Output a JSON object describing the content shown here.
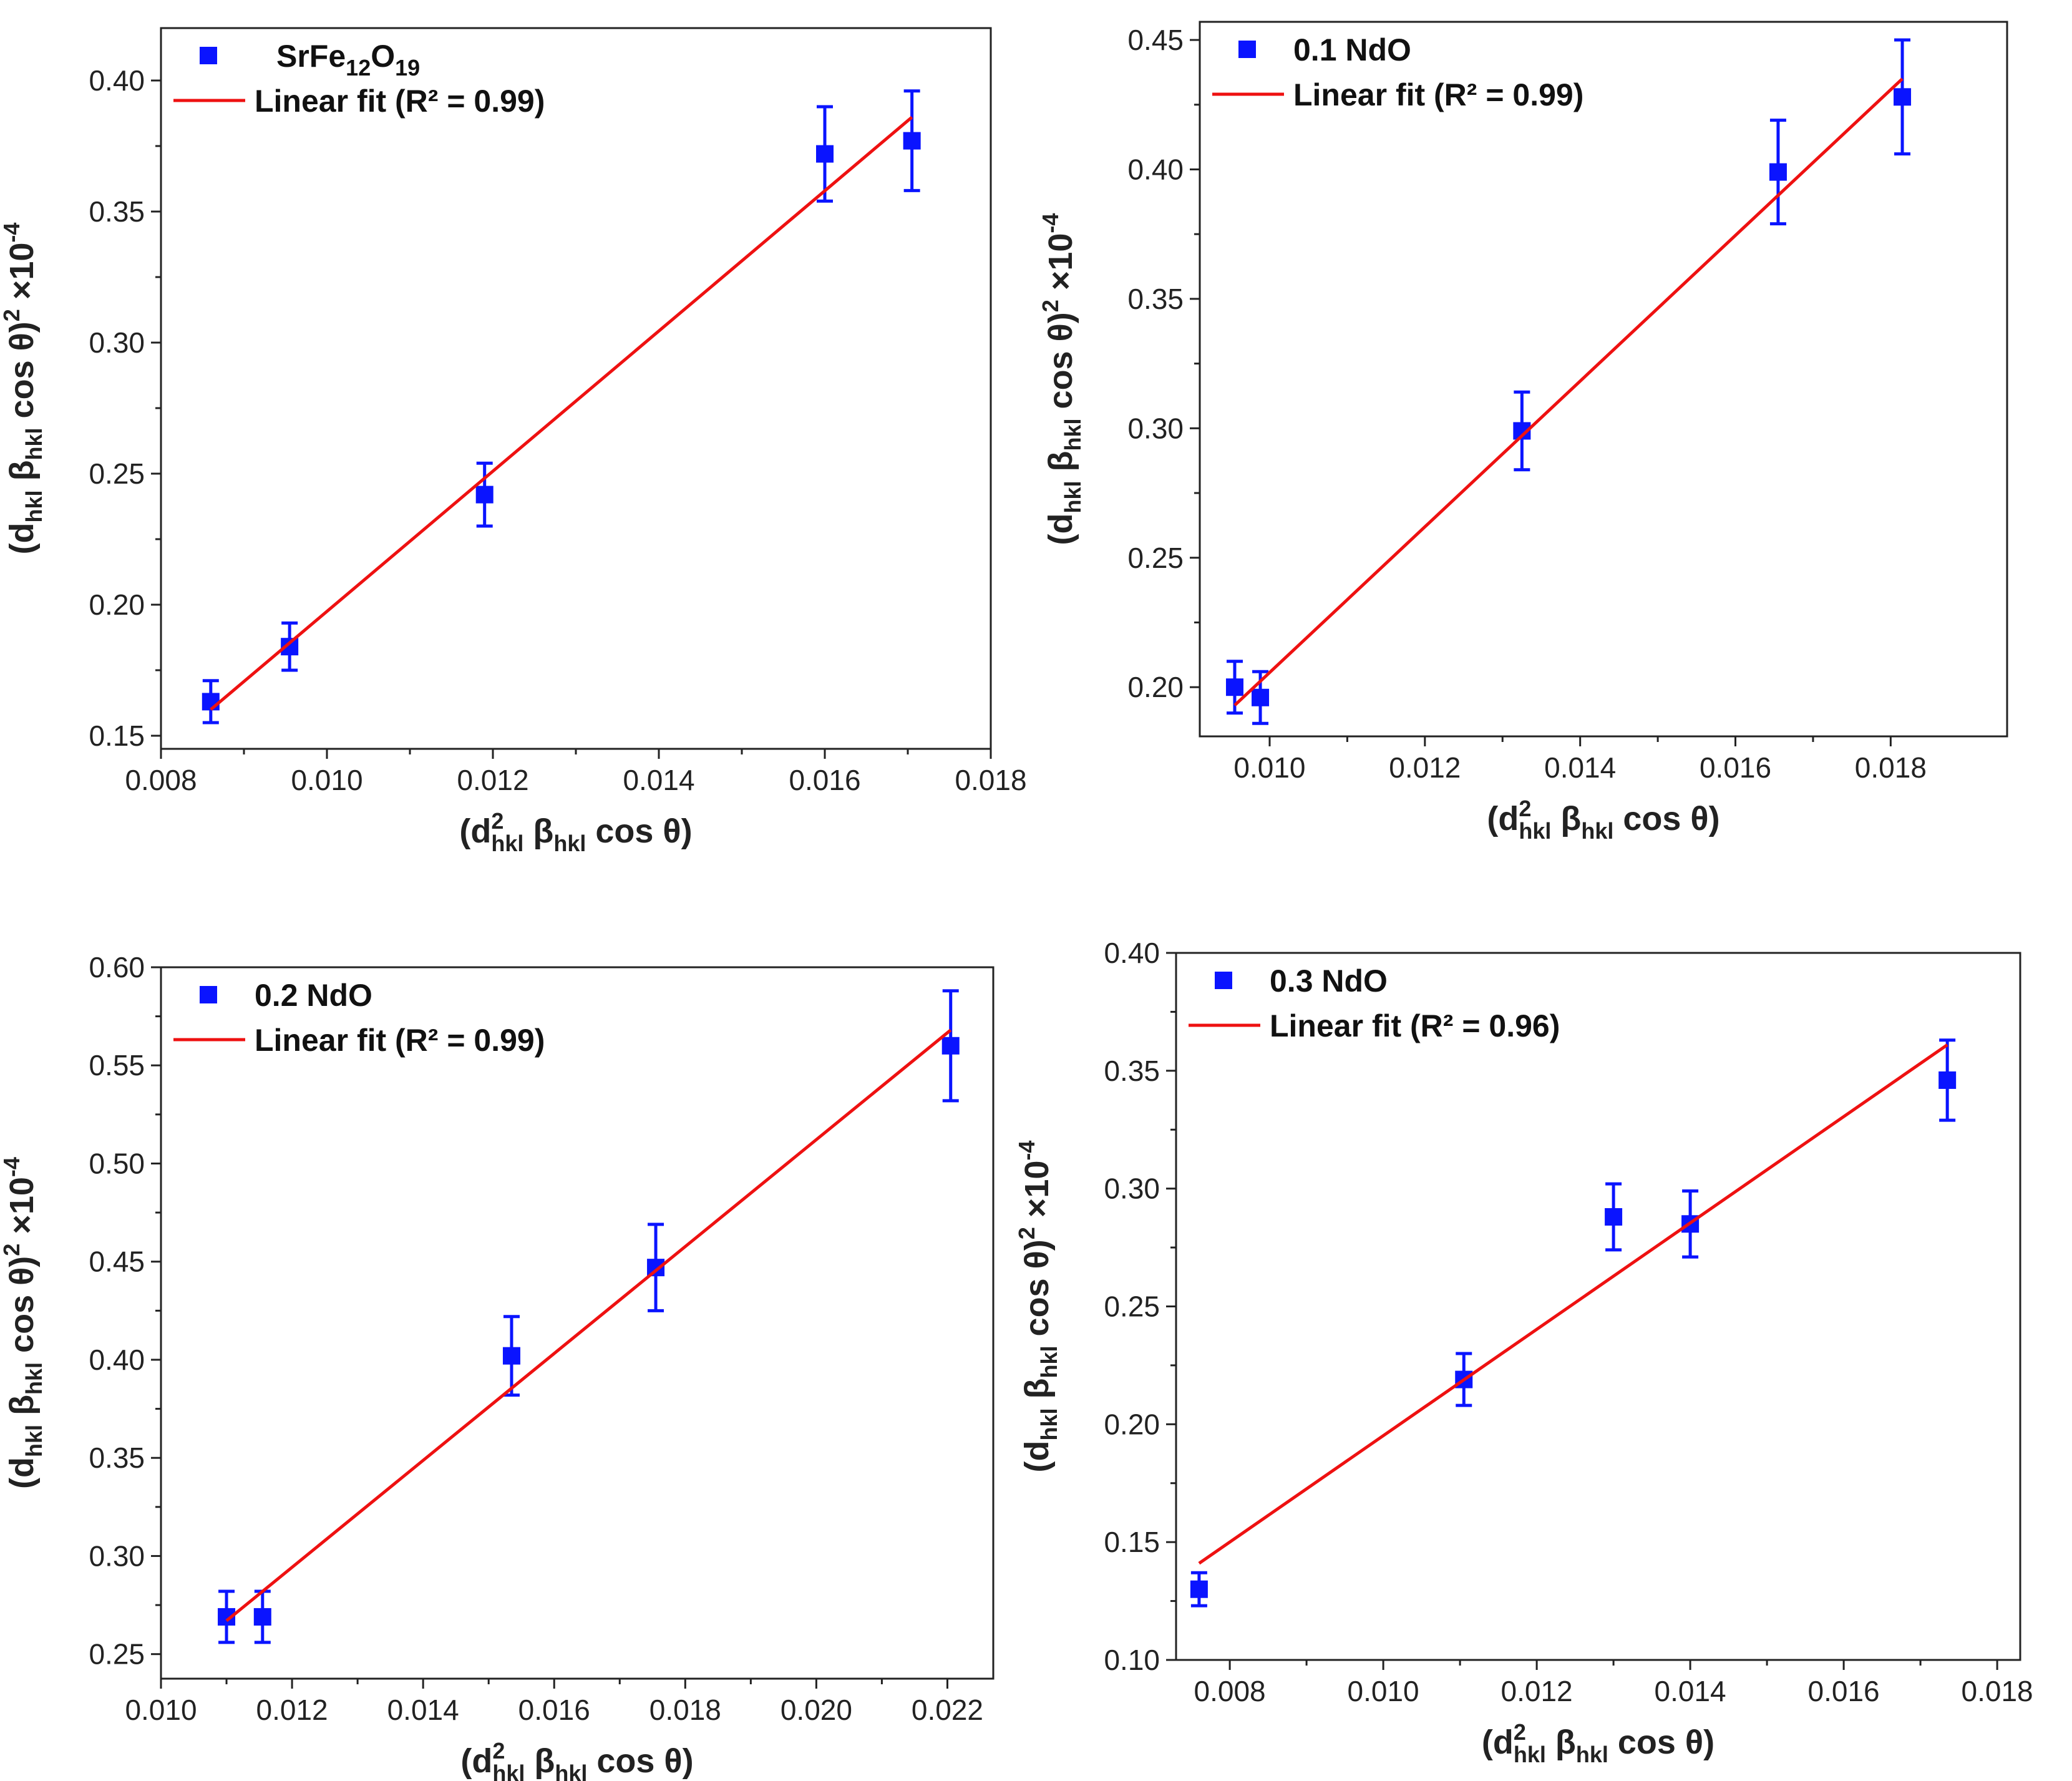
{
  "chart_data": [
    {
      "type": "scatter",
      "title": "",
      "xlabel": "(d²hkl βhkl cos θ)",
      "ylabel": "(dhkl βhkl cos θ)² ×10⁻⁴",
      "x_ticks": [
        "0.008",
        "0.010",
        "0.012",
        "0.014",
        "0.016",
        "0.018"
      ],
      "y_ticks": [
        "0.15",
        "0.20",
        "0.25",
        "0.30",
        "0.35",
        "0.40"
      ],
      "xlim": [
        0.008,
        0.018
      ],
      "ylim": [
        0.145,
        0.42
      ],
      "legend_location": "top-left",
      "series": [
        {
          "name": "SrFe12O19",
          "name_parts": [
            [
              "SrFe",
              "n"
            ],
            [
              "12",
              "sub"
            ],
            [
              "O",
              "n"
            ],
            [
              "19",
              "sub"
            ]
          ],
          "kind": "points",
          "color": "#0a14ff",
          "x": [
            0.0086,
            0.00955,
            0.0119,
            0.016,
            0.01705
          ],
          "y": [
            0.163,
            0.184,
            0.242,
            0.372,
            0.377
          ],
          "yerr": [
            0.008,
            0.009,
            0.012,
            0.018,
            0.019
          ]
        },
        {
          "name": "Linear fit (R² = 0.99)",
          "kind": "line",
          "color": "#ee1111",
          "x": [
            0.0086,
            0.01705
          ],
          "y": [
            0.16,
            0.386
          ]
        }
      ]
    },
    {
      "type": "scatter",
      "title": "",
      "xlabel": "(d²hkl βhkl cos θ)",
      "ylabel": "(dhkl βhkl cos θ)² ×10⁻⁴",
      "x_ticks": [
        "0.010",
        "0.012",
        "0.014",
        "0.016",
        "0.018"
      ],
      "y_ticks": [
        "0.20",
        "0.25",
        "0.30",
        "0.35",
        "0.40",
        "0.45"
      ],
      "xlim": [
        0.0091,
        0.0195
      ],
      "ylim": [
        0.181,
        0.457
      ],
      "legend_location": "top-left",
      "series": [
        {
          "name": "0.1 NdO",
          "kind": "points",
          "color": "#0a14ff",
          "x": [
            0.00955,
            0.00988,
            0.01325,
            0.01655,
            0.01815
          ],
          "y": [
            0.2,
            0.196,
            0.299,
            0.399,
            0.428
          ],
          "yerr": [
            0.01,
            0.01,
            0.015,
            0.02,
            0.022
          ]
        },
        {
          "name": "Linear fit (R² = 0.99)",
          "kind": "line",
          "color": "#ee1111",
          "x": [
            0.00955,
            0.01815
          ],
          "y": [
            0.193,
            0.435
          ]
        }
      ]
    },
    {
      "type": "scatter",
      "title": "",
      "xlabel": "(d²hkl βhkl cos θ)",
      "ylabel": "(dhkl βhkl cos θ)² ×10⁻⁴",
      "x_ticks": [
        "0.010",
        "0.012",
        "0.014",
        "0.016",
        "0.018",
        "0.020",
        "0.022"
      ],
      "y_ticks": [
        "0.25",
        "0.30",
        "0.35",
        "0.40",
        "0.45",
        "0.50",
        "0.55",
        "0.60"
      ],
      "xlim": [
        0.01,
        0.0227
      ],
      "ylim": [
        0.2375,
        0.6
      ],
      "legend_location": "top-left",
      "series": [
        {
          "name": "0.2 NdO",
          "kind": "points",
          "color": "#0a14ff",
          "x": [
            0.011,
            0.01155,
            0.01535,
            0.01755,
            0.02205
          ],
          "y": [
            0.269,
            0.269,
            0.402,
            0.447,
            0.56
          ],
          "yerr": [
            0.013,
            0.013,
            0.02,
            0.022,
            0.028
          ]
        },
        {
          "name": "Linear fit (R² = 0.99)",
          "kind": "line",
          "color": "#ee1111",
          "x": [
            0.011,
            0.02205
          ],
          "y": [
            0.267,
            0.568
          ]
        }
      ]
    },
    {
      "type": "scatter",
      "title": "",
      "xlabel": "(d²hkl βhkl cos θ)",
      "ylabel": "(dhkl βhkl cos θ)² ×10⁻⁴",
      "x_ticks": [
        "0.008",
        "0.010",
        "0.012",
        "0.014",
        "0.016",
        "0.018"
      ],
      "y_ticks": [
        "0.10",
        "0.15",
        "0.20",
        "0.25",
        "0.30",
        "0.35",
        "0.40"
      ],
      "xlim": [
        0.0073,
        0.0183
      ],
      "ylim": [
        0.1,
        0.4
      ],
      "legend_location": "top-left",
      "series": [
        {
          "name": "0.3 NdO",
          "kind": "points",
          "color": "#0a14ff",
          "x": [
            0.0076,
            0.01105,
            0.013,
            0.014,
            0.01735
          ],
          "y": [
            0.13,
            0.219,
            0.288,
            0.285,
            0.346
          ],
          "yerr": [
            0.007,
            0.011,
            0.014,
            0.014,
            0.017
          ]
        },
        {
          "name": "Linear fit (R² = 0.96)",
          "kind": "line",
          "color": "#ee1111",
          "x": [
            0.0076,
            0.01735
          ],
          "y": [
            0.141,
            0.361
          ]
        }
      ]
    }
  ]
}
